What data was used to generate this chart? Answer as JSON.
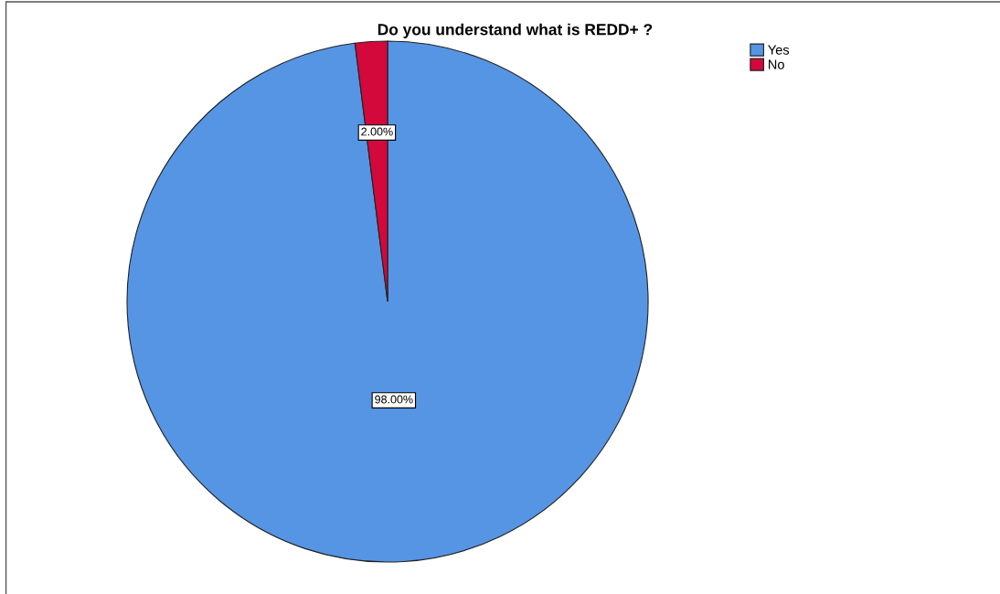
{
  "chart_data": {
    "type": "pie",
    "title": "Do you understand what is REDD+ ?",
    "categories": [
      "Yes",
      "No"
    ],
    "values": [
      98,
      2
    ],
    "colors": [
      "#5595e4",
      "#d3083b"
    ],
    "value_labels": [
      "98.00%",
      "2.00%"
    ],
    "legend": "top right"
  }
}
